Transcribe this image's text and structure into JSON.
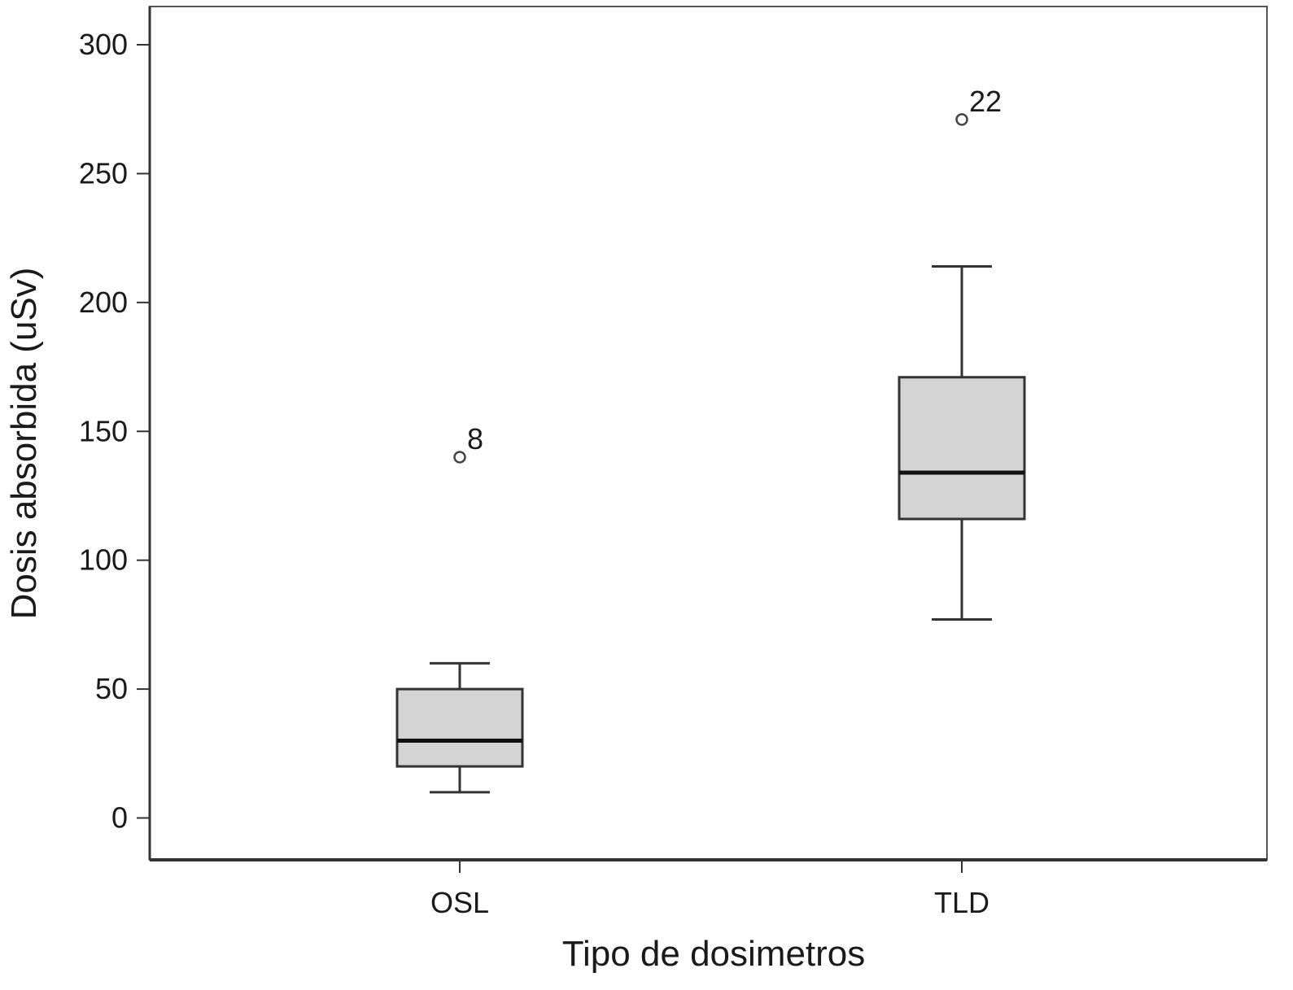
{
  "chart_data": {
    "type": "boxplot",
    "title": "",
    "xlabel": "Tipo de dosimetros",
    "ylabel": "Dosis absorbida (uSv)",
    "ylim": [
      -16,
      316
    ],
    "yticks": [
      "0",
      "50",
      "100",
      "150",
      "200",
      "250",
      "300"
    ],
    "grid": false,
    "colors": {
      "box_fill": "#d4d4d4",
      "stroke": "#333333",
      "median": "#111111"
    },
    "categories": [
      "OSL",
      "TLD"
    ],
    "boxes": [
      {
        "category": "OSL",
        "whisker_low": 10,
        "q1": 20,
        "median": 30,
        "q3": 50,
        "whisker_high": 60,
        "outliers": [
          {
            "value": 140,
            "label": "8"
          }
        ]
      },
      {
        "category": "TLD",
        "whisker_low": 77,
        "q1": 116,
        "median": 134,
        "q3": 171,
        "whisker_high": 214,
        "outliers": [
          {
            "value": 271,
            "label": "22"
          }
        ]
      }
    ]
  }
}
